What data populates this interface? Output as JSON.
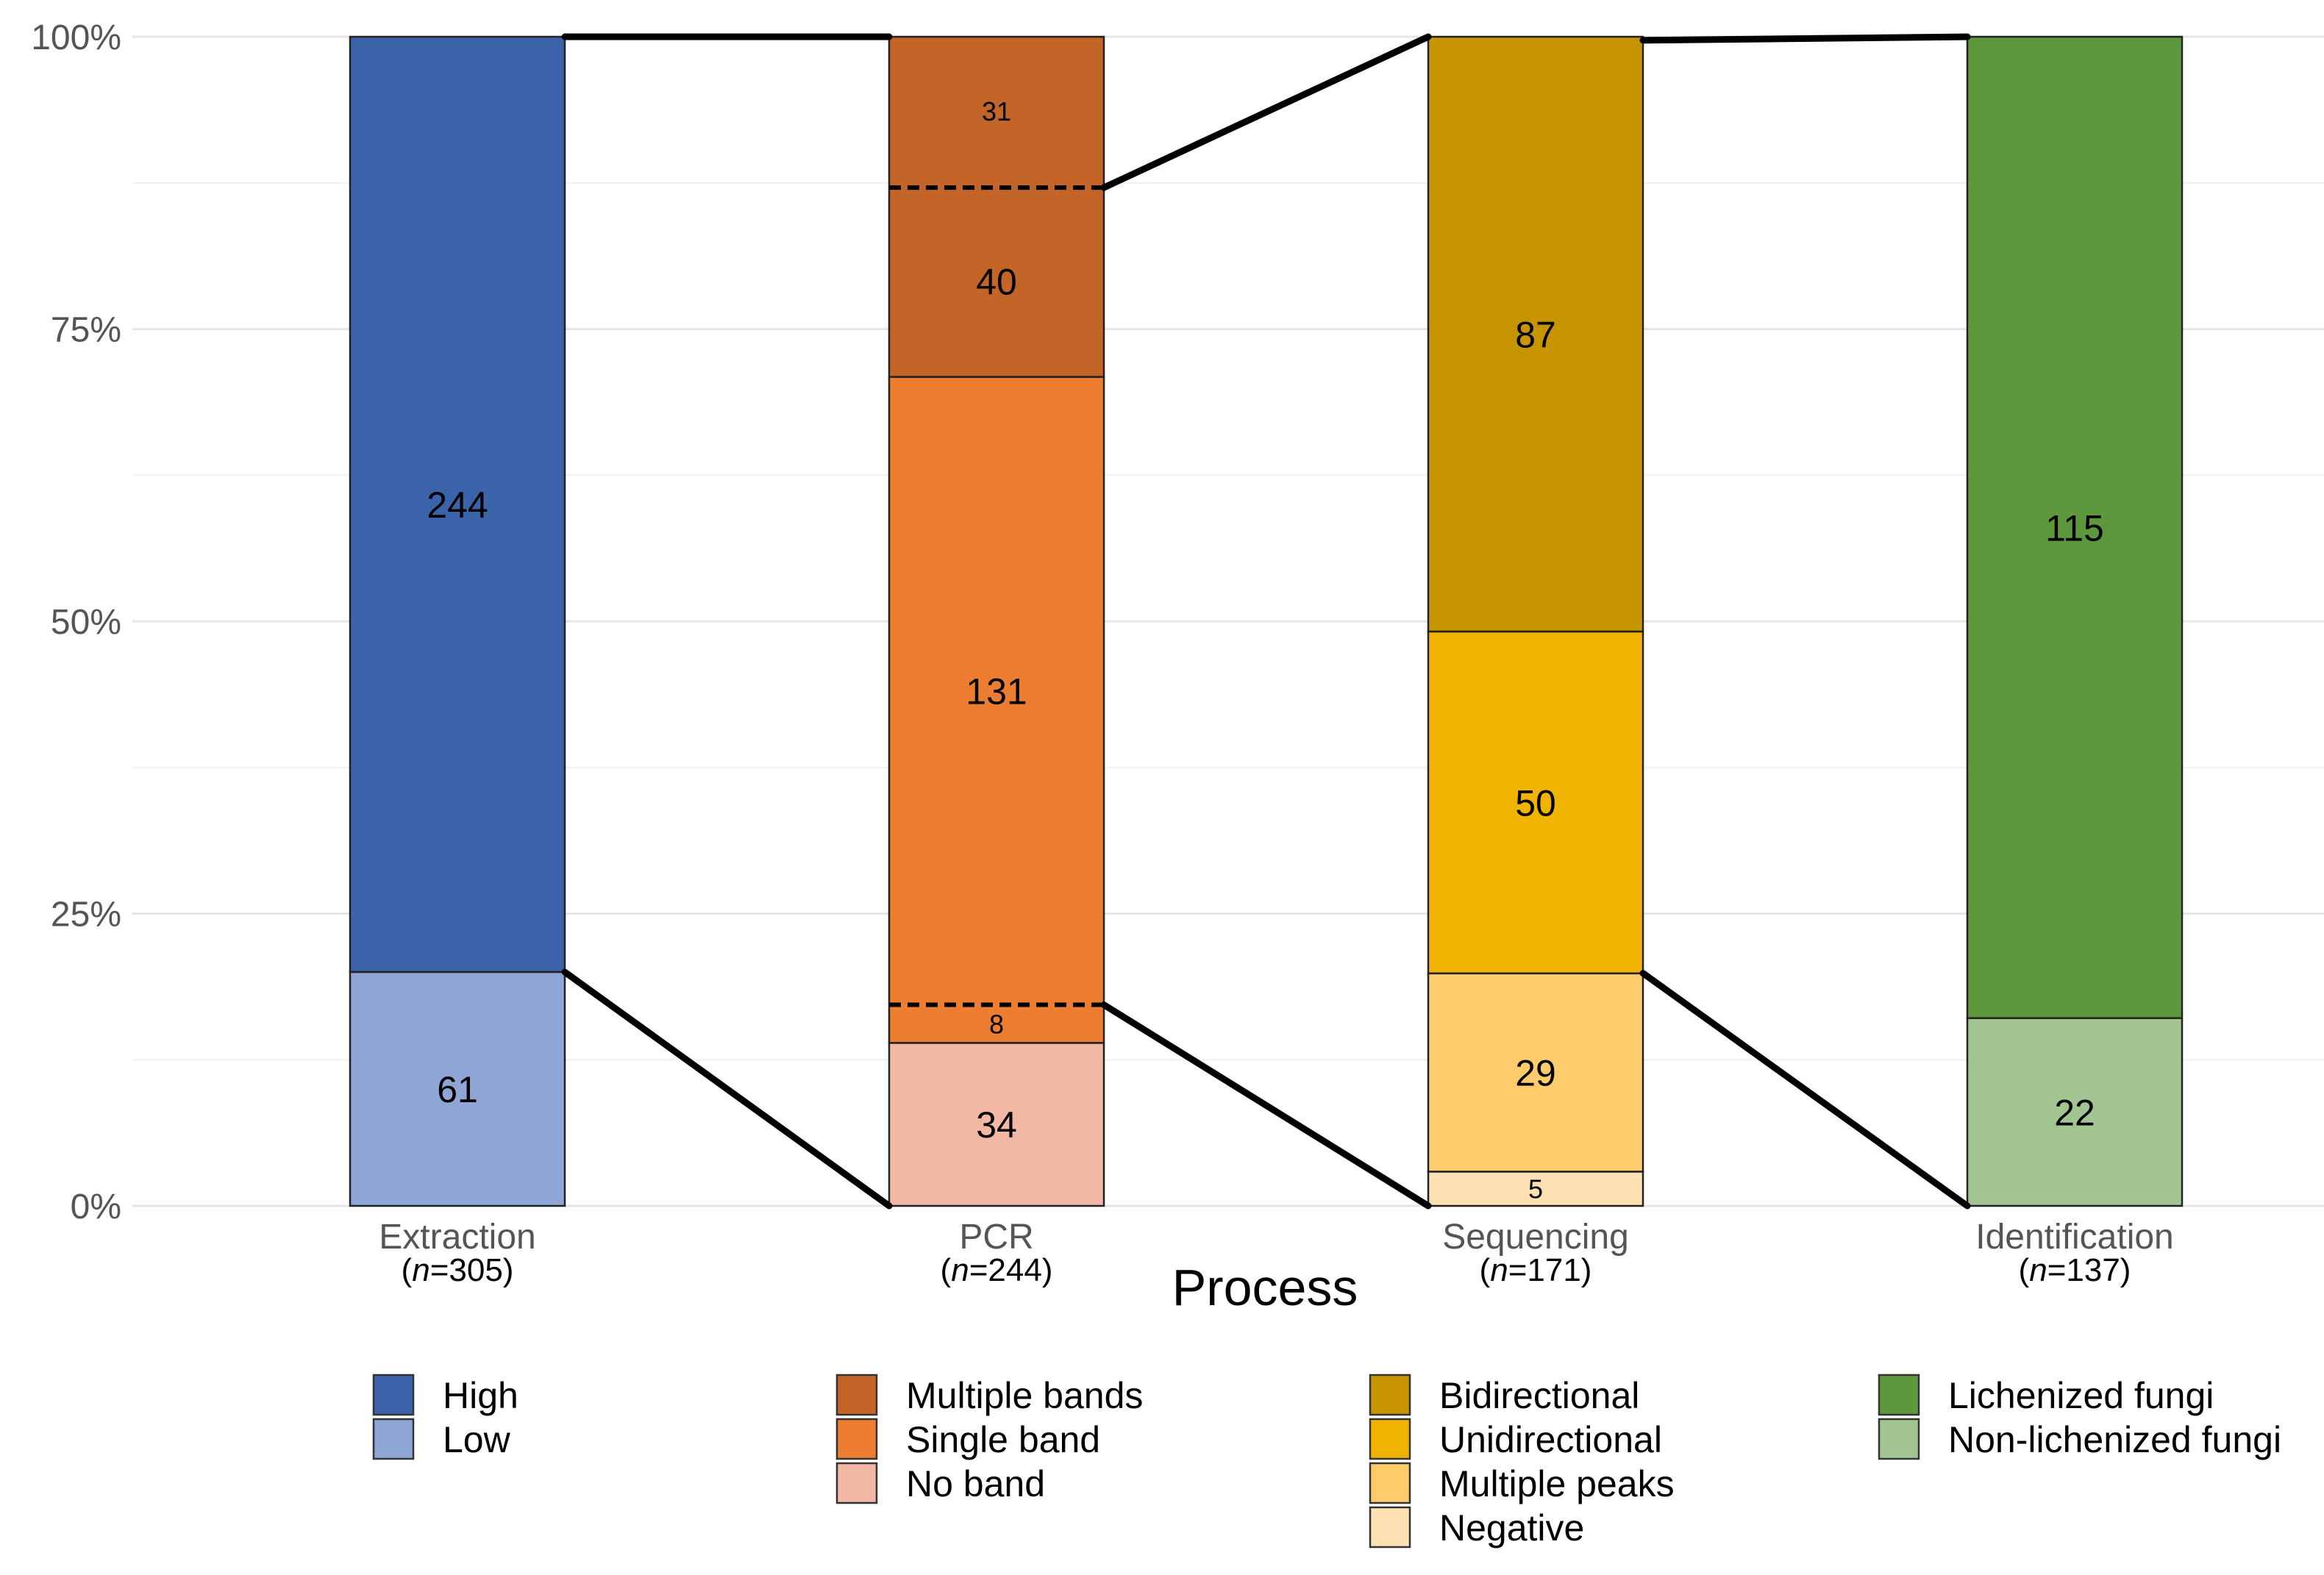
{
  "chart_data": {
    "type": "bar",
    "stacked": true,
    "normalized": true,
    "title": "",
    "xlabel": "Process",
    "ylabel": "",
    "ylim": [
      0,
      1
    ],
    "y_ticks": [
      {
        "value": 0,
        "label": "0%"
      },
      {
        "value": 0.25,
        "label": "25%"
      },
      {
        "value": 0.5,
        "label": "50%"
      },
      {
        "value": 0.75,
        "label": "75%"
      },
      {
        "value": 1,
        "label": "100%"
      }
    ],
    "grid": true,
    "legend_position": "bottom",
    "categories": [
      {
        "name": "Extraction",
        "n_label": "n",
        "n_value": "=305)",
        "total": 305,
        "segments": [
          {
            "label": "High",
            "value": 244,
            "color": "#3b63aa",
            "text": "244",
            "text_size": "large"
          },
          {
            "label": "Low",
            "value": 61,
            "color": "#8ea5d6",
            "text": "61",
            "text_size": "large"
          }
        ]
      },
      {
        "name": "PCR",
        "n_label": "n",
        "n_value": "=244)",
        "total": 244,
        "segments": [
          {
            "label": "Multiple bands",
            "value": 71,
            "color": "#c36428",
            "parts": [
              31,
              40
            ],
            "text_parts": [
              "31",
              "40"
            ],
            "text_size_parts": [
              "small",
              "large"
            ]
          },
          {
            "label": "Single band",
            "value": 139,
            "color": "#ed7d31",
            "parts": [
              131,
              8
            ],
            "text_parts": [
              "131",
              "8"
            ],
            "text_size_parts": [
              "large",
              "small"
            ]
          },
          {
            "label": "No band",
            "value": 34,
            "color": "#f2b8a3",
            "text": "34",
            "text_size": "large"
          }
        ]
      },
      {
        "name": "Sequencing",
        "n_label": "n",
        "n_value": "=171)",
        "total": 171,
        "segments": [
          {
            "label": "Bidirectional",
            "value": 87,
            "color": "#c79500",
            "text": "87",
            "text_size": "large"
          },
          {
            "label": "Unidirectional",
            "value": 50,
            "color": "#f0b400",
            "text": "50",
            "text_size": "large"
          },
          {
            "label": "Multiple peaks",
            "value": 29,
            "color": "#ffcb6b",
            "text": "29",
            "text_size": "large"
          },
          {
            "label": "Negative",
            "value": 5,
            "color": "#fde1b3",
            "text": "5",
            "text_size": "small"
          }
        ]
      },
      {
        "name": "Identification",
        "n_label": "n",
        "n_value": "=137)",
        "total": 137,
        "segments": [
          {
            "label": "Lichenized fungi",
            "value": 115,
            "color": "#5e983d",
            "text": "115",
            "text_size": "large"
          },
          {
            "label": "Non-lichenized fungi",
            "value": 22,
            "color": "#a1c490",
            "text": "22",
            "text_size": "large"
          }
        ]
      }
    ],
    "connectors": [
      {
        "from_bar": 0,
        "from_value": 1.0,
        "to_bar": 1,
        "to_value": 1.0
      },
      {
        "from_bar": 0,
        "from_value": 0.2,
        "to_bar": 1,
        "to_value": 0.0
      },
      {
        "from_bar": 1,
        "from_value": 0.871,
        "to_bar": 2,
        "to_value": 1.0
      },
      {
        "from_bar": 1,
        "from_value": 0.172,
        "to_bar": 2,
        "to_value": 0.0
      },
      {
        "from_bar": 2,
        "from_value": 0.997,
        "to_bar": 3,
        "to_value": 1.0
      },
      {
        "from_bar": 2,
        "from_value": 0.199,
        "to_bar": 3,
        "to_value": 0.0
      }
    ],
    "dashed_lines": [
      {
        "bar": 1,
        "value": 0.871
      },
      {
        "bar": 1,
        "value": 0.172
      }
    ],
    "legend_groups": [
      {
        "items": [
          {
            "label": "High",
            "color": "#3b63aa"
          },
          {
            "label": "Low",
            "color": "#8ea5d6"
          }
        ]
      },
      {
        "items": [
          {
            "label": "Multiple bands",
            "color": "#c36428"
          },
          {
            "label": "Single band",
            "color": "#ed7d31"
          },
          {
            "label": "No band",
            "color": "#f2b8a3"
          }
        ]
      },
      {
        "items": [
          {
            "label": "Bidirectional",
            "color": "#c79500"
          },
          {
            "label": "Unidirectional",
            "color": "#f0b400"
          },
          {
            "label": "Multiple peaks",
            "color": "#ffcb6b"
          },
          {
            "label": "Negative",
            "color": "#fde1b3"
          }
        ]
      },
      {
        "items": [
          {
            "label": "Lichenized fungi",
            "color": "#5e983d"
          },
          {
            "label": "Non-lichenized fungi",
            "color": "#a1c490"
          }
        ]
      }
    ]
  }
}
